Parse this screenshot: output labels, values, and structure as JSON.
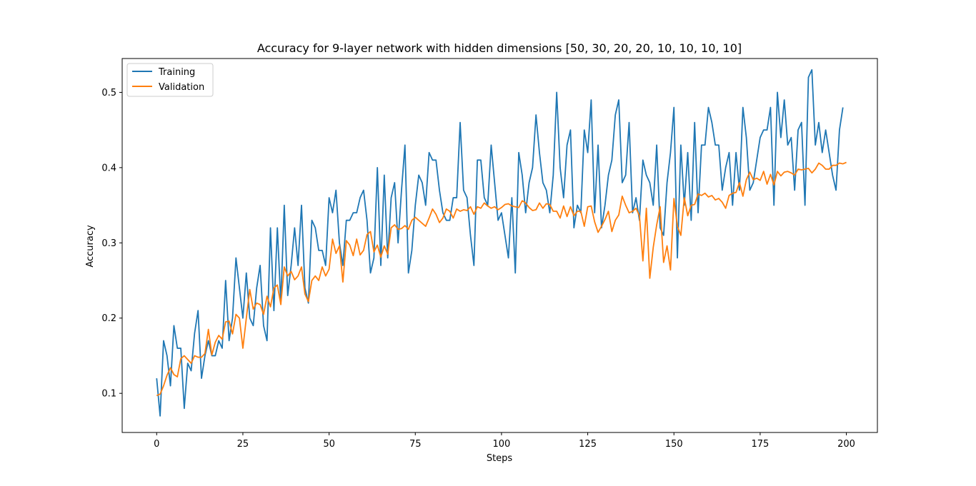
{
  "chart_data": {
    "type": "line",
    "title": "Accuracy for 9-layer network with hidden dimensions [50, 30, 20, 20, 10, 10, 10, 10]",
    "xlabel": "Steps",
    "ylabel": "Accuracy",
    "xlim": [
      -10,
      209
    ],
    "ylim": [
      0.048,
      0.545
    ],
    "xticks": [
      0,
      25,
      50,
      75,
      100,
      125,
      150,
      175,
      200
    ],
    "xtick_labels": [
      "0",
      "25",
      "50",
      "75",
      "100",
      "125",
      "150",
      "175",
      "200"
    ],
    "yticks": [
      0.1,
      0.2,
      0.3,
      0.4,
      0.5
    ],
    "ytick_labels": [
      "0.1",
      "0.2",
      "0.3",
      "0.4",
      "0.5"
    ],
    "legend_position": "top-left",
    "grid": false,
    "series": [
      {
        "name": "Training",
        "color": "#1f77b4",
        "values": [
          0.12,
          0.07,
          0.17,
          0.15,
          0.11,
          0.19,
          0.16,
          0.16,
          0.08,
          0.14,
          0.13,
          0.18,
          0.21,
          0.12,
          0.15,
          0.17,
          0.15,
          0.15,
          0.17,
          0.16,
          0.25,
          0.17,
          0.2,
          0.28,
          0.24,
          0.2,
          0.26,
          0.2,
          0.19,
          0.24,
          0.27,
          0.19,
          0.17,
          0.32,
          0.21,
          0.32,
          0.22,
          0.35,
          0.23,
          0.27,
          0.32,
          0.27,
          0.35,
          0.24,
          0.22,
          0.33,
          0.32,
          0.29,
          0.29,
          0.27,
          0.36,
          0.34,
          0.37,
          0.3,
          0.27,
          0.33,
          0.33,
          0.34,
          0.34,
          0.36,
          0.37,
          0.33,
          0.26,
          0.28,
          0.4,
          0.27,
          0.39,
          0.28,
          0.36,
          0.38,
          0.3,
          0.37,
          0.43,
          0.26,
          0.29,
          0.35,
          0.39,
          0.38,
          0.35,
          0.42,
          0.41,
          0.41,
          0.37,
          0.34,
          0.33,
          0.33,
          0.36,
          0.36,
          0.46,
          0.37,
          0.36,
          0.31,
          0.27,
          0.41,
          0.41,
          0.36,
          0.35,
          0.43,
          0.38,
          0.33,
          0.34,
          0.31,
          0.28,
          0.36,
          0.26,
          0.42,
          0.39,
          0.34,
          0.38,
          0.4,
          0.47,
          0.42,
          0.38,
          0.37,
          0.34,
          0.39,
          0.5,
          0.4,
          0.36,
          0.43,
          0.45,
          0.32,
          0.35,
          0.34,
          0.45,
          0.42,
          0.49,
          0.34,
          0.43,
          0.32,
          0.35,
          0.39,
          0.41,
          0.47,
          0.49,
          0.38,
          0.39,
          0.46,
          0.34,
          0.36,
          0.33,
          0.41,
          0.39,
          0.38,
          0.35,
          0.43,
          0.32,
          0.31,
          0.38,
          0.42,
          0.48,
          0.28,
          0.43,
          0.35,
          0.42,
          0.33,
          0.46,
          0.34,
          0.43,
          0.43,
          0.48,
          0.46,
          0.43,
          0.43,
          0.37,
          0.4,
          0.42,
          0.35,
          0.42,
          0.37,
          0.48,
          0.44,
          0.37,
          0.38,
          0.41,
          0.44,
          0.45,
          0.45,
          0.48,
          0.35,
          0.5,
          0.44,
          0.49,
          0.43,
          0.44,
          0.37,
          0.45,
          0.46,
          0.35,
          0.52,
          0.53,
          0.43,
          0.46,
          0.42,
          0.45,
          0.42,
          0.39,
          0.37,
          0.45,
          0.48
        ]
      },
      {
        "name": "Validation",
        "color": "#ff7f0e",
        "values": [
          0.097,
          0.099,
          0.11,
          0.124,
          0.134,
          0.125,
          0.122,
          0.146,
          0.15,
          0.145,
          0.14,
          0.15,
          0.148,
          0.148,
          0.153,
          0.185,
          0.151,
          0.168,
          0.177,
          0.172,
          0.195,
          0.196,
          0.179,
          0.205,
          0.2,
          0.16,
          0.2,
          0.238,
          0.212,
          0.22,
          0.218,
          0.205,
          0.229,
          0.215,
          0.24,
          0.244,
          0.218,
          0.268,
          0.256,
          0.262,
          0.251,
          0.256,
          0.268,
          0.232,
          0.222,
          0.25,
          0.256,
          0.25,
          0.268,
          0.256,
          0.265,
          0.305,
          0.286,
          0.296,
          0.248,
          0.303,
          0.297,
          0.283,
          0.305,
          0.284,
          0.29,
          0.311,
          0.315,
          0.288,
          0.297,
          0.281,
          0.296,
          0.285,
          0.32,
          0.324,
          0.318,
          0.319,
          0.323,
          0.318,
          0.33,
          0.334,
          0.33,
          0.326,
          0.322,
          0.333,
          0.345,
          0.338,
          0.327,
          0.333,
          0.345,
          0.342,
          0.333,
          0.345,
          0.342,
          0.344,
          0.343,
          0.348,
          0.338,
          0.348,
          0.346,
          0.353,
          0.349,
          0.346,
          0.348,
          0.344,
          0.347,
          0.351,
          0.352,
          0.349,
          0.348,
          0.347,
          0.356,
          0.353,
          0.347,
          0.343,
          0.344,
          0.353,
          0.346,
          0.352,
          0.351,
          0.342,
          0.342,
          0.333,
          0.349,
          0.335,
          0.348,
          0.336,
          0.342,
          0.342,
          0.322,
          0.348,
          0.349,
          0.328,
          0.314,
          0.322,
          0.331,
          0.342,
          0.315,
          0.33,
          0.337,
          0.362,
          0.35,
          0.34,
          0.342,
          0.346,
          0.336,
          0.276,
          0.346,
          0.253,
          0.294,
          0.324,
          0.348,
          0.274,
          0.296,
          0.264,
          0.359,
          0.322,
          0.31,
          0.36,
          0.336,
          0.35,
          0.351,
          0.365,
          0.363,
          0.366,
          0.361,
          0.363,
          0.357,
          0.359,
          0.354,
          0.346,
          0.363,
          0.366,
          0.367,
          0.38,
          0.362,
          0.384,
          0.394,
          0.384,
          0.386,
          0.383,
          0.395,
          0.378,
          0.391,
          0.377,
          0.395,
          0.389,
          0.394,
          0.395,
          0.393,
          0.39,
          0.398,
          0.397,
          0.398,
          0.399,
          0.393,
          0.398,
          0.406,
          0.403,
          0.398,
          0.398,
          0.403,
          0.403,
          0.406,
          0.405,
          0.407
        ]
      }
    ]
  }
}
